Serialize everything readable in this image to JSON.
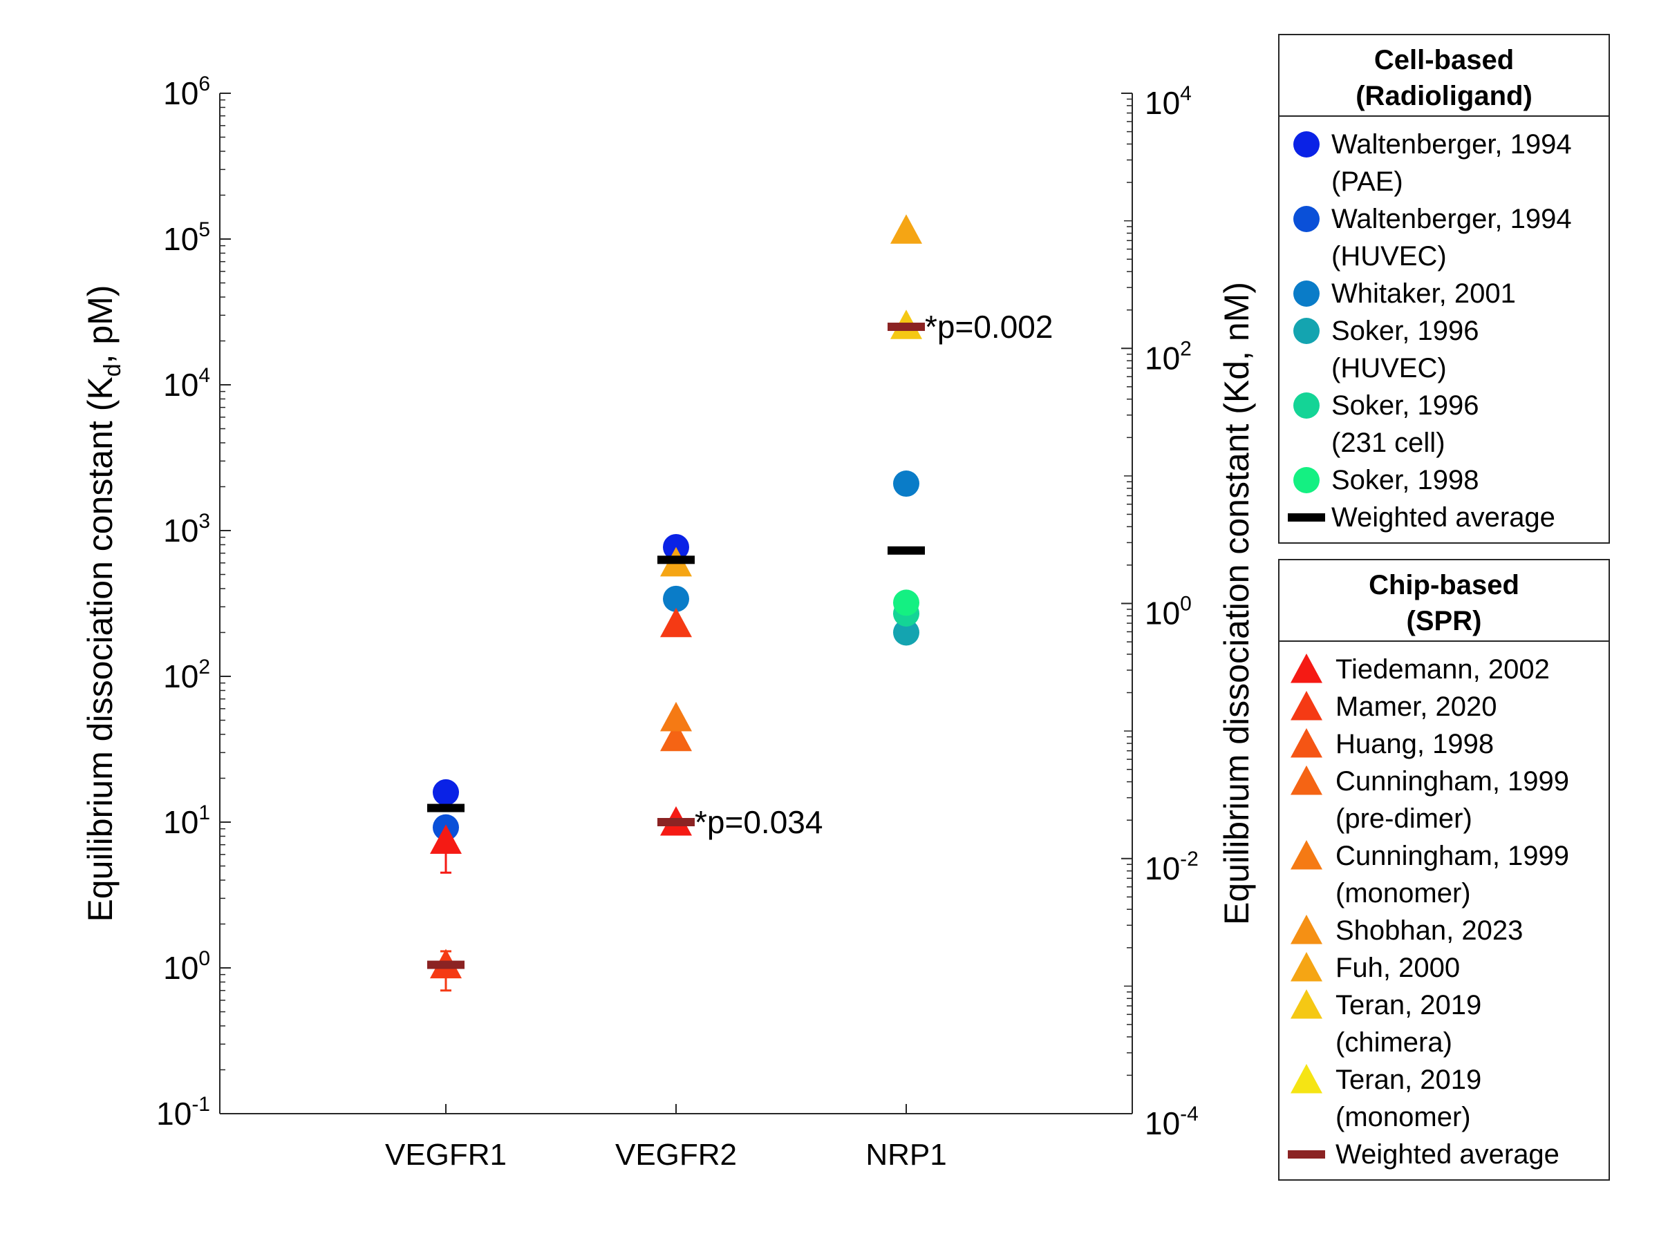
{
  "chart_data": {
    "type": "scatter",
    "categories": [
      "VEGFR1",
      "VEGFR2",
      "NRP1"
    ],
    "y_left": {
      "label_main": "Equilibrium dissociation constant (K",
      "label_sub": "d",
      "label_rest": ", pM)",
      "scale": "log",
      "range": [
        0.1,
        1000000
      ],
      "ticks": [
        {
          "value": 0.1,
          "base": "10",
          "exp": "-1"
        },
        {
          "value": 1,
          "base": "10",
          "exp": "0"
        },
        {
          "value": 10,
          "base": "10",
          "exp": "1"
        },
        {
          "value": 100,
          "base": "10",
          "exp": "2"
        },
        {
          "value": 1000,
          "base": "10",
          "exp": "3"
        },
        {
          "value": 10000,
          "base": "10",
          "exp": "4"
        },
        {
          "value": 100000,
          "base": "10",
          "exp": "5"
        },
        {
          "value": 1000000,
          "base": "10",
          "exp": "6"
        }
      ]
    },
    "y_right": {
      "label": "Equilibrium dissociation constant (Kd, nM)",
      "scale": "log",
      "range": [
        0.0001,
        10000
      ],
      "ticks": [
        {
          "value": 0.0001,
          "base": "10",
          "exp": "-4"
        },
        {
          "value": 0.01,
          "base": "10",
          "exp": "-2"
        },
        {
          "value": 1,
          "base": "10",
          "exp": "0"
        },
        {
          "value": 100,
          "base": "10",
          "exp": "2"
        },
        {
          "value": 10000,
          "base": "10",
          "exp": "4"
        }
      ]
    },
    "cell_based": {
      "legend_title": [
        "Cell-based",
        "(Radioligand)"
      ],
      "series": [
        {
          "name": [
            "Waltenberger, 1994",
            "(PAE)"
          ],
          "color": "#0a22e6",
          "marker": "circle",
          "points": [
            {
              "cat": "VEGFR1",
              "value": 16
            },
            {
              "cat": "VEGFR2",
              "value": 770
            }
          ]
        },
        {
          "name": [
            "Waltenberger, 1994",
            "(HUVEC)"
          ],
          "color": "#0a50d8",
          "marker": "circle",
          "points": [
            {
              "cat": "VEGFR1",
              "value": 9.2
            }
          ]
        },
        {
          "name": [
            "Whitaker, 2001"
          ],
          "color": "#0a7cc8",
          "marker": "circle",
          "points": [
            {
              "cat": "VEGFR2",
              "value": 340
            },
            {
              "cat": "NRP1",
              "value": 2100
            }
          ]
        },
        {
          "name": [
            "Soker, 1996",
            "(HUVEC)"
          ],
          "color": "#14a4b0",
          "marker": "circle",
          "points": [
            {
              "cat": "NRP1",
              "value": 200
            }
          ]
        },
        {
          "name": [
            "Soker, 1996",
            "(231 cell)"
          ],
          "color": "#14d496",
          "marker": "circle",
          "points": [
            {
              "cat": "NRP1",
              "value": 270
            }
          ]
        },
        {
          "name": [
            "Soker, 1998"
          ],
          "color": "#14f082",
          "marker": "circle",
          "points": [
            {
              "cat": "NRP1",
              "value": 320
            }
          ]
        }
      ],
      "weighted_average": {
        "name": [
          "Weighted average"
        ],
        "color": "#000000",
        "points": [
          {
            "cat": "VEGFR1",
            "value": 12.5
          },
          {
            "cat": "VEGFR2",
            "value": 630
          },
          {
            "cat": "NRP1",
            "value": 730
          }
        ]
      }
    },
    "chip_based": {
      "legend_title": [
        "Chip-based",
        "(SPR)"
      ],
      "series": [
        {
          "name": [
            "Tiedemann, 2002"
          ],
          "color": "#f51a14",
          "marker": "triangle",
          "points": [
            {
              "cat": "VEGFR1",
              "value": 7.5,
              "err_low": 4.5,
              "err_high": 10
            },
            {
              "cat": "VEGFR2",
              "value": 10
            }
          ]
        },
        {
          "name": [
            "Mamer, 2020"
          ],
          "color": "#f53a14",
          "marker": "triangle",
          "points": [
            {
              "cat": "VEGFR1",
              "value": 1.05,
              "err_low": 0.7,
              "err_high": 1.3
            },
            {
              "cat": "VEGFR2",
              "value": 230
            }
          ]
        },
        {
          "name": [
            "Huang, 1998"
          ],
          "color": "#f55514",
          "marker": "triangle",
          "points": []
        },
        {
          "name": [
            "Cunningham, 1999",
            "(pre-dimer)"
          ],
          "color": "#f56414",
          "marker": "triangle",
          "points": [
            {
              "cat": "VEGFR2",
              "value": 38
            }
          ]
        },
        {
          "name": [
            "Cunningham, 1999",
            "(monomer)"
          ],
          "color": "#f57a14",
          "marker": "triangle",
          "points": [
            {
              "cat": "VEGFR2",
              "value": 52
            }
          ]
        },
        {
          "name": [
            "Shobhan, 2023"
          ],
          "color": "#f59014",
          "marker": "triangle",
          "points": []
        },
        {
          "name": [
            "Fuh, 2000"
          ],
          "color": "#f5a514",
          "marker": "triangle",
          "points": [
            {
              "cat": "VEGFR2",
              "value": 600
            },
            {
              "cat": "NRP1",
              "value": 115000
            }
          ]
        },
        {
          "name": [
            "Teran, 2019",
            "(chimera)"
          ],
          "color": "#f5c814",
          "marker": "triangle",
          "points": [
            {
              "cat": "NRP1",
              "value": 25500
            }
          ]
        },
        {
          "name": [
            "Teran, 2019",
            "(monomer)"
          ],
          "color": "#f5e414",
          "marker": "triangle",
          "points": []
        }
      ],
      "weighted_average": {
        "name": [
          "Weighted average"
        ],
        "color": "#8b2323",
        "points": [
          {
            "cat": "VEGFR1",
            "value": 1.05
          },
          {
            "cat": "VEGFR2",
            "value": 10
          },
          {
            "cat": "NRP1",
            "value": 25000
          }
        ]
      }
    },
    "annotations": [
      {
        "text": "*p=0.034",
        "cat": "VEGFR2",
        "value": 10
      },
      {
        "text": "*p=0.002",
        "cat": "NRP1",
        "value": 25000
      }
    ],
    "grid": false,
    "legend_position": "right"
  }
}
